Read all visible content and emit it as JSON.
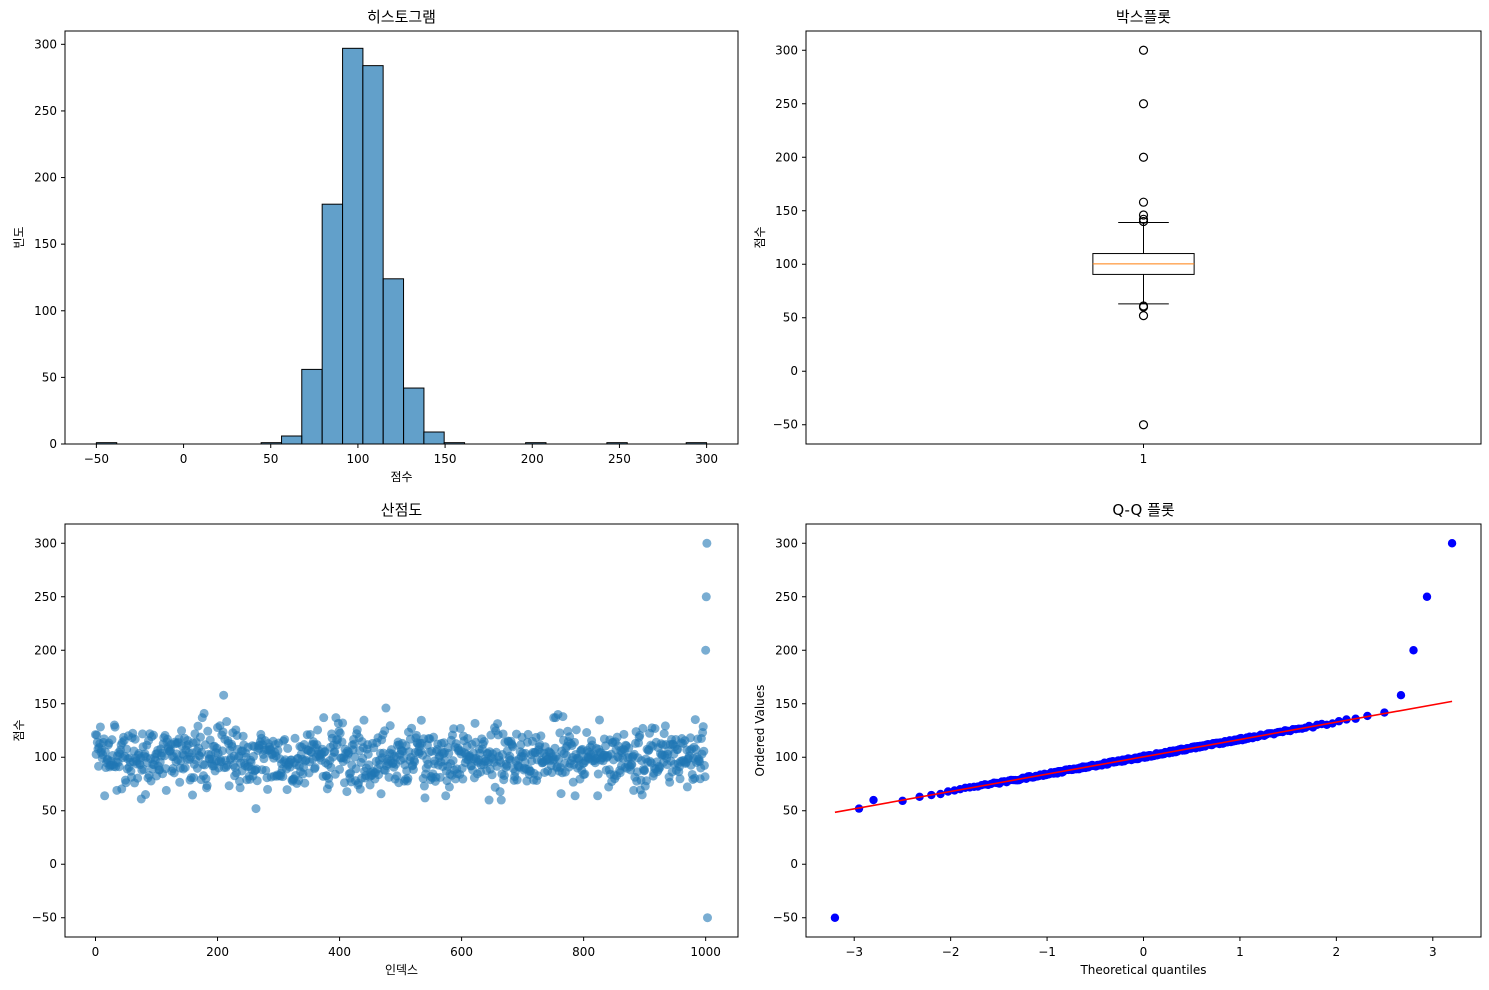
{
  "colors": {
    "bar_fill": "#1f77b4",
    "bar_edge": "#000000",
    "box_median": "#ff7f0e",
    "qq_points": "#0000ff",
    "qq_line": "#ff0000",
    "scatter_points": "#1f77b4"
  },
  "chart_data": [
    {
      "type": "bar",
      "subtype": "histogram",
      "title": "히스토그램",
      "xlabel": "점수",
      "ylabel": "빈도",
      "xlim": [
        -68,
        318
      ],
      "ylim": [
        0,
        310
      ],
      "xticks": [
        -50,
        0,
        50,
        100,
        150,
        200,
        250,
        300
      ],
      "yticks": [
        0,
        50,
        100,
        150,
        200,
        250,
        300
      ],
      "bin_width": 11.67,
      "bins": [
        {
          "x0": -50.0,
          "count": 1
        },
        {
          "x0": 44.5,
          "count": 1
        },
        {
          "x0": 56.2,
          "count": 6
        },
        {
          "x0": 67.8,
          "count": 56
        },
        {
          "x0": 79.5,
          "count": 180
        },
        {
          "x0": 91.2,
          "count": 297
        },
        {
          "x0": 102.8,
          "count": 284
        },
        {
          "x0": 114.5,
          "count": 124
        },
        {
          "x0": 126.2,
          "count": 42
        },
        {
          "x0": 137.8,
          "count": 9
        },
        {
          "x0": 149.5,
          "count": 1
        },
        {
          "x0": 196.2,
          "count": 1
        },
        {
          "x0": 242.8,
          "count": 1
        },
        {
          "x0": 288.3,
          "count": 1
        }
      ]
    },
    {
      "type": "box",
      "title": "박스플롯",
      "xlabel": "",
      "ylabel": "점수",
      "ylim": [
        -68,
        318
      ],
      "xticks": [
        "1"
      ],
      "yticks": [
        -50,
        0,
        50,
        100,
        150,
        200,
        250,
        300
      ],
      "q1": 90.5,
      "median": 100.3,
      "q3": 110.0,
      "whisker_low": 63,
      "whisker_high": 139,
      "outliers": [
        300,
        250,
        200,
        158,
        146,
        142,
        140,
        61,
        60,
        52,
        -50
      ]
    },
    {
      "type": "scatter",
      "title": "산점도",
      "xlabel": "인덱스",
      "ylabel": "점수",
      "xlim": [
        -50,
        1053
      ],
      "ylim": [
        -68,
        318
      ],
      "xticks": [
        0,
        200,
        400,
        600,
        800,
        1000
      ],
      "yticks": [
        -50,
        0,
        50,
        100,
        150,
        200,
        250,
        300
      ],
      "n_points": 1004,
      "distribution": {
        "mean": 100,
        "std": 15
      },
      "highlight_points": [
        {
          "x": 1000,
          "y": 200
        },
        {
          "x": 1001,
          "y": 250
        },
        {
          "x": 1002,
          "y": 300
        },
        {
          "x": 1003,
          "y": -50
        },
        {
          "x": 210,
          "y": 158
        },
        {
          "x": 263,
          "y": 52
        },
        {
          "x": 476,
          "y": 146
        },
        {
          "x": 75,
          "y": 61
        },
        {
          "x": 540,
          "y": 62
        },
        {
          "x": 645,
          "y": 60
        },
        {
          "x": 665,
          "y": 60
        },
        {
          "x": 178,
          "y": 141
        },
        {
          "x": 758,
          "y": 140
        },
        {
          "x": 766,
          "y": 138
        }
      ]
    },
    {
      "type": "scatter",
      "subtype": "qq",
      "title": "Q-Q 플롯",
      "xlabel": "Theoretical quantiles",
      "ylabel": "Ordered Values",
      "xlim": [
        -3.5,
        3.5
      ],
      "ylim": [
        -68,
        318
      ],
      "xticks": [
        -3,
        -2,
        -1,
        0,
        1,
        2,
        3
      ],
      "yticks": [
        -50,
        0,
        50,
        100,
        150,
        200,
        250,
        300
      ],
      "fit_line": {
        "slope": 16.2,
        "intercept": 100.4,
        "x_range": [
          -3.2,
          3.2
        ]
      },
      "tail_points": [
        {
          "x": -3.2,
          "y": -50
        },
        {
          "x": -2.95,
          "y": 52
        },
        {
          "x": -2.8,
          "y": 60
        },
        {
          "x": 2.67,
          "y": 158
        },
        {
          "x": 2.8,
          "y": 200
        },
        {
          "x": 2.94,
          "y": 250
        },
        {
          "x": 3.2,
          "y": 300
        }
      ]
    }
  ]
}
